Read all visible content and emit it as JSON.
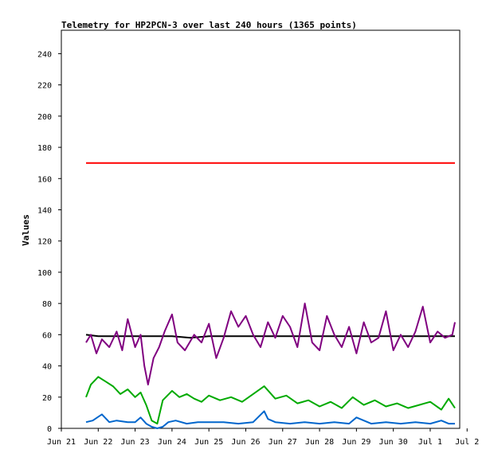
{
  "chart_data": {
    "type": "line",
    "title": "Telemetry for HP2PCN-3 over last 240 hours (1365 points)",
    "ylabel": "Values",
    "xlabel": "",
    "ylim": [
      0,
      255
    ],
    "yticks": [
      0,
      20,
      40,
      60,
      80,
      100,
      120,
      140,
      160,
      180,
      200,
      220,
      240
    ],
    "x_range_days": [
      21.0,
      31.8
    ],
    "xticks": [
      {
        "label": "Jun 21",
        "day": 21
      },
      {
        "label": "Jun 22",
        "day": 22
      },
      {
        "label": "Jun 23",
        "day": 23
      },
      {
        "label": "Jun 24",
        "day": 24
      },
      {
        "label": "Jun 25",
        "day": 25
      },
      {
        "label": "Jun 26",
        "day": 26
      },
      {
        "label": "Jun 27",
        "day": 27
      },
      {
        "label": "Jun 28",
        "day": 28
      },
      {
        "label": "Jun 29",
        "day": 29
      },
      {
        "label": "Jun 30",
        "day": 30
      },
      {
        "label": "Jul 1",
        "day": 31
      },
      {
        "label": "Jul 2",
        "day": 32
      }
    ],
    "series": [
      {
        "color": "#ff0000",
        "x": [
          21.67,
          23.0,
          24.0,
          25.0,
          26.0,
          27.0,
          28.0,
          29.0,
          30.0,
          31.0,
          31.67
        ],
        "values": [
          170,
          170,
          170,
          170,
          170,
          170,
          170,
          170,
          170,
          170,
          170
        ]
      },
      {
        "color": "#000000",
        "x": [
          21.67,
          22.0,
          23.0,
          24.0,
          24.5,
          25.0,
          26.0,
          27.0,
          28.0,
          29.0,
          30.0,
          31.0,
          31.67
        ],
        "values": [
          60,
          59,
          59,
          59,
          58,
          59,
          59,
          59,
          59,
          59,
          59,
          59,
          59
        ]
      },
      {
        "color": "#800080",
        "x": [
          21.67,
          21.8,
          21.95,
          22.1,
          22.3,
          22.5,
          22.65,
          22.8,
          23.0,
          23.15,
          23.25,
          23.35,
          23.5,
          23.65,
          23.8,
          24.0,
          24.15,
          24.35,
          24.6,
          24.8,
          25.0,
          25.2,
          25.4,
          25.6,
          25.8,
          26.0,
          26.2,
          26.4,
          26.6,
          26.8,
          27.0,
          27.2,
          27.4,
          27.6,
          27.8,
          28.0,
          28.2,
          28.4,
          28.6,
          28.8,
          29.0,
          29.2,
          29.4,
          29.6,
          29.8,
          30.0,
          30.2,
          30.4,
          30.6,
          30.8,
          31.0,
          31.2,
          31.4,
          31.6,
          31.67
        ],
        "values": [
          55,
          60,
          48,
          57,
          52,
          62,
          50,
          70,
          52,
          60,
          40,
          28,
          45,
          52,
          62,
          73,
          55,
          50,
          60,
          55,
          67,
          45,
          58,
          75,
          65,
          72,
          60,
          52,
          68,
          58,
          72,
          65,
          52,
          80,
          55,
          50,
          72,
          60,
          52,
          65,
          48,
          68,
          55,
          58,
          75,
          50,
          60,
          52,
          62,
          78,
          55,
          62,
          58,
          60,
          68
        ]
      },
      {
        "color": "#00aa00",
        "x": [
          21.67,
          21.8,
          22.0,
          22.2,
          22.4,
          22.6,
          22.8,
          23.0,
          23.15,
          23.3,
          23.45,
          23.6,
          23.75,
          24.0,
          24.2,
          24.4,
          24.6,
          24.8,
          25.0,
          25.3,
          25.6,
          25.9,
          26.2,
          26.5,
          26.8,
          27.1,
          27.4,
          27.7,
          28.0,
          28.3,
          28.6,
          28.9,
          29.2,
          29.5,
          29.8,
          30.1,
          30.4,
          30.7,
          31.0,
          31.3,
          31.5,
          31.67
        ],
        "values": [
          20,
          28,
          33,
          30,
          27,
          22,
          25,
          20,
          23,
          15,
          5,
          3,
          18,
          24,
          20,
          22,
          19,
          17,
          21,
          18,
          20,
          17,
          22,
          27,
          19,
          21,
          16,
          18,
          14,
          17,
          13,
          20,
          15,
          18,
          14,
          16,
          13,
          15,
          17,
          12,
          19,
          13
        ]
      },
      {
        "color": "#0066cc",
        "x": [
          21.67,
          21.85,
          22.1,
          22.3,
          22.5,
          22.8,
          23.0,
          23.15,
          23.3,
          23.45,
          23.6,
          23.75,
          23.9,
          24.1,
          24.4,
          24.7,
          25.0,
          25.4,
          25.8,
          26.2,
          26.5,
          26.6,
          26.8,
          27.2,
          27.6,
          28.0,
          28.4,
          28.8,
          29.0,
          29.4,
          29.8,
          30.2,
          30.6,
          31.0,
          31.3,
          31.5,
          31.67
        ],
        "values": [
          4,
          5,
          9,
          4,
          5,
          4,
          4,
          7,
          3,
          1,
          0,
          1,
          4,
          5,
          3,
          4,
          4,
          4,
          3,
          4,
          11,
          6,
          4,
          3,
          4,
          3,
          4,
          3,
          7,
          3,
          4,
          3,
          4,
          3,
          5,
          3,
          3
        ]
      }
    ]
  }
}
